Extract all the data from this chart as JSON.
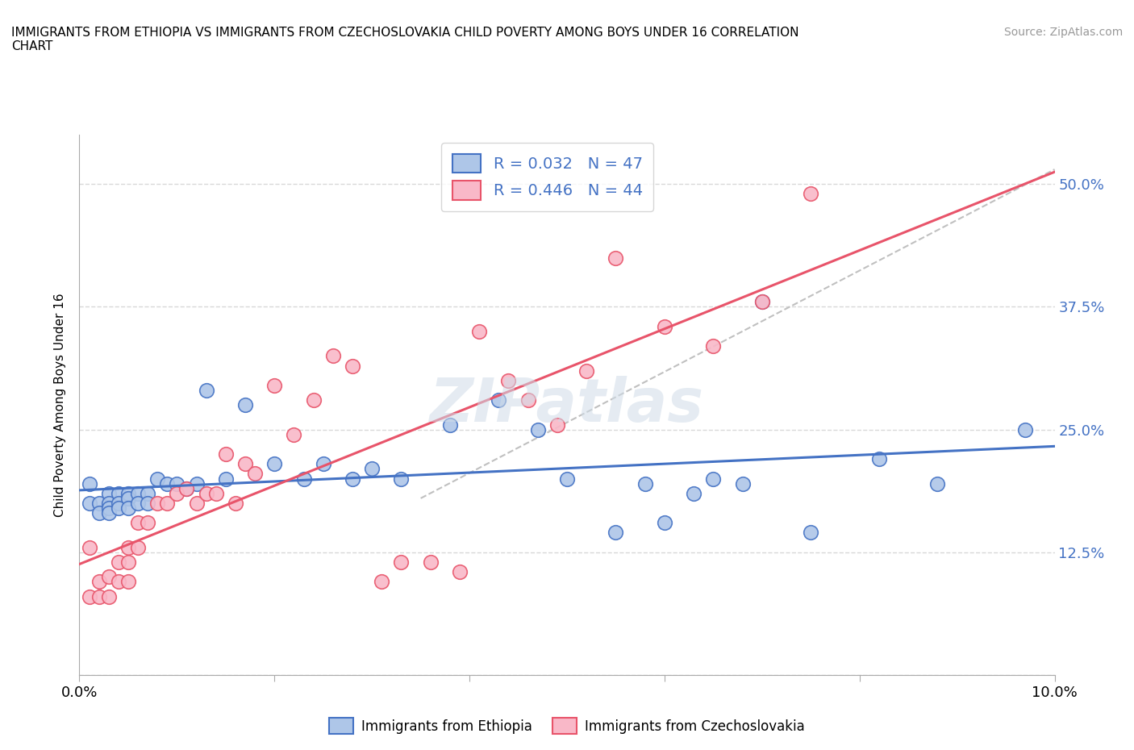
{
  "title": "IMMIGRANTS FROM ETHIOPIA VS IMMIGRANTS FROM CZECHOSLOVAKIA CHILD POVERTY AMONG BOYS UNDER 16 CORRELATION\nCHART",
  "source_text": "Source: ZipAtlas.com",
  "ylabel": "Child Poverty Among Boys Under 16",
  "xlim": [
    0.0,
    0.1
  ],
  "ylim": [
    0.0,
    0.55
  ],
  "xticks": [
    0.0,
    0.02,
    0.04,
    0.06,
    0.08,
    0.1
  ],
  "xticklabels": [
    "0.0%",
    "",
    "",
    "",
    "",
    "10.0%"
  ],
  "yticks": [
    0.0,
    0.125,
    0.25,
    0.375,
    0.5
  ],
  "yticklabels": [
    "",
    "12.5%",
    "25.0%",
    "37.5%",
    "50.0%"
  ],
  "color_ethiopia": "#aec6e8",
  "color_czechoslovakia": "#f9b8c8",
  "color_ethiopia_line": "#4472c4",
  "color_czechoslovakia_line": "#e8546a",
  "color_trendline_dashed": "#c0c0c0",
  "R_ethiopia": 0.032,
  "N_ethiopia": 47,
  "R_czechoslovakia": 0.446,
  "N_czechoslovakia": 44,
  "watermark": "ZIPatlas",
  "ethiopia_x": [
    0.001,
    0.001,
    0.002,
    0.002,
    0.003,
    0.003,
    0.003,
    0.003,
    0.004,
    0.004,
    0.004,
    0.005,
    0.005,
    0.005,
    0.006,
    0.006,
    0.007,
    0.007,
    0.008,
    0.009,
    0.01,
    0.011,
    0.012,
    0.013,
    0.015,
    0.017,
    0.02,
    0.023,
    0.025,
    0.028,
    0.03,
    0.033,
    0.038,
    0.043,
    0.047,
    0.05,
    0.055,
    0.058,
    0.06,
    0.063,
    0.065,
    0.068,
    0.07,
    0.075,
    0.082,
    0.088,
    0.097
  ],
  "ethiopia_y": [
    0.195,
    0.175,
    0.175,
    0.165,
    0.185,
    0.175,
    0.17,
    0.165,
    0.185,
    0.175,
    0.17,
    0.185,
    0.18,
    0.17,
    0.185,
    0.175,
    0.185,
    0.175,
    0.2,
    0.195,
    0.195,
    0.19,
    0.195,
    0.29,
    0.2,
    0.275,
    0.215,
    0.2,
    0.215,
    0.2,
    0.21,
    0.2,
    0.255,
    0.28,
    0.25,
    0.2,
    0.145,
    0.195,
    0.155,
    0.185,
    0.2,
    0.195,
    0.38,
    0.145,
    0.22,
    0.195,
    0.25
  ],
  "czechoslovakia_x": [
    0.001,
    0.001,
    0.002,
    0.002,
    0.003,
    0.003,
    0.004,
    0.004,
    0.005,
    0.005,
    0.005,
    0.006,
    0.006,
    0.007,
    0.008,
    0.009,
    0.01,
    0.011,
    0.012,
    0.013,
    0.014,
    0.015,
    0.016,
    0.017,
    0.018,
    0.02,
    0.022,
    0.024,
    0.026,
    0.028,
    0.031,
    0.033,
    0.036,
    0.039,
    0.041,
    0.044,
    0.046,
    0.049,
    0.052,
    0.055,
    0.06,
    0.065,
    0.07,
    0.075
  ],
  "czechoslovakia_y": [
    0.13,
    0.08,
    0.095,
    0.08,
    0.1,
    0.08,
    0.115,
    0.095,
    0.13,
    0.115,
    0.095,
    0.155,
    0.13,
    0.155,
    0.175,
    0.175,
    0.185,
    0.19,
    0.175,
    0.185,
    0.185,
    0.225,
    0.175,
    0.215,
    0.205,
    0.295,
    0.245,
    0.28,
    0.325,
    0.315,
    0.095,
    0.115,
    0.115,
    0.105,
    0.35,
    0.3,
    0.28,
    0.255,
    0.31,
    0.425,
    0.355,
    0.335,
    0.38,
    0.49
  ],
  "legend_ethiopia_label": "Immigrants from Ethiopia",
  "legend_czechoslovakia_label": "Immigrants from Czechoslovakia",
  "grid_color": "#d8d8d8",
  "dashed_line_x": [
    0.035,
    0.1
  ],
  "dashed_line_y": [
    0.18,
    0.515
  ]
}
